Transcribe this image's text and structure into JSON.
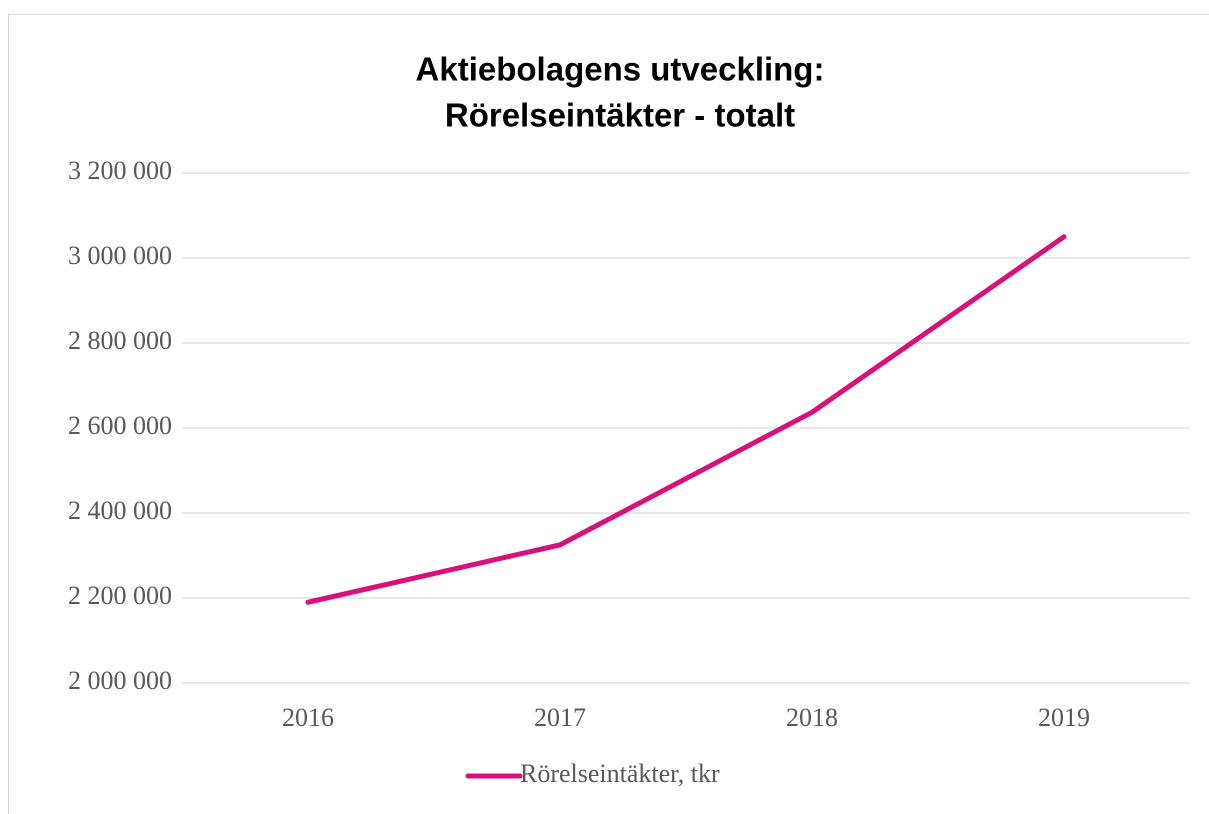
{
  "chart_data": {
    "type": "line",
    "title": [
      "Aktiebolagens utveckling:",
      "Rörelseintäkter - totalt"
    ],
    "categories": [
      "2016",
      "2017",
      "2018",
      "2019"
    ],
    "series": [
      {
        "name": "Rörelseintäkter, tkr",
        "color": "#d90f7a",
        "values": [
          2190000,
          2325000,
          2637000,
          3050000
        ]
      }
    ],
    "ylim": [
      2000000,
      3200000
    ],
    "yticks": [
      {
        "value": 2000000,
        "label": "2 000 000"
      },
      {
        "value": 2200000,
        "label": "2 200 000"
      },
      {
        "value": 2400000,
        "label": "2 400 000"
      },
      {
        "value": 2600000,
        "label": "2 600 000"
      },
      {
        "value": 2800000,
        "label": "2 800 000"
      },
      {
        "value": 3000000,
        "label": "3 000 000"
      },
      {
        "value": 3200000,
        "label": "3 200 000"
      }
    ],
    "grid": true,
    "legend": "bottom"
  }
}
